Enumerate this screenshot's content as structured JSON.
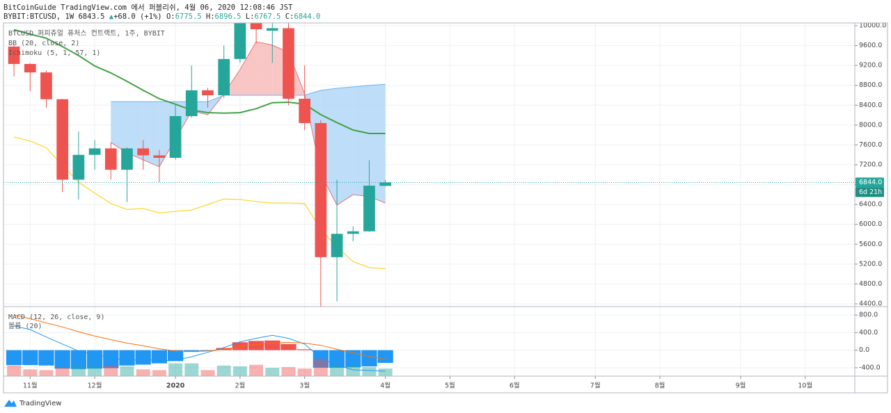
{
  "header": {
    "published": "BitCoinGuide TradingView.com 에서 퍼블리쉬, 4월 06, 2020 12:08:46 JST",
    "symbol": "BYBIT:BTCUSD, 1W",
    "price": "6843.5",
    "arrow": "▲",
    "change": "+68.0 (+1%)",
    "ohlc": [
      {
        "label": "O:",
        "value": "6775.5"
      },
      {
        "label": "H:",
        "value": "6896.5"
      },
      {
        "label": "L:",
        "value": "6767.5"
      },
      {
        "label": "C:",
        "value": "6844.0"
      }
    ]
  },
  "footer": {
    "brand": "TradingView"
  },
  "chart_data": [
    {
      "type": "candlestick",
      "title": "BTCUSD 퍼피츄얼 퓨처스 컨트랙트, 1주, BYBIT",
      "indicators": [
        "BB (20, close, 2)",
        "Ichimoku (5, 1, 57, 1)"
      ],
      "up_color": "#26a69a",
      "down_color": "#ef5350",
      "open": [
        9580,
        9230,
        9060,
        8520,
        6900,
        7400,
        7530,
        7100,
        7530,
        7390,
        7340,
        8180,
        8700,
        8600,
        9330,
        10300,
        9900,
        9950,
        8530,
        8040,
        5340,
        5810,
        5860,
        6775.5
      ],
      "high": [
        9600,
        9250,
        9100,
        8530,
        7870,
        7700,
        7650,
        7550,
        7700,
        7500,
        8420,
        9200,
        8750,
        9600,
        10400,
        10500,
        10200,
        10100,
        9200,
        8100,
        6900,
        5960,
        7290,
        6896.5
      ],
      "low": [
        8980,
        8680,
        8350,
        6650,
        6500,
        7100,
        6900,
        6450,
        7100,
        6850,
        7300,
        8150,
        8350,
        8550,
        9250,
        9650,
        9250,
        8400,
        7900,
        3850,
        4450,
        5660,
        5850,
        6767.5
      ],
      "close": [
        9230,
        9060,
        8520,
        6900,
        7400,
        7530,
        7100,
        7530,
        7390,
        7340,
        8180,
        8700,
        8600,
        9330,
        10300,
        9930,
        9950,
        8530,
        8040,
        5340,
        5810,
        5860,
        6780,
        6844.0
      ],
      "series": [
        {
          "color": "#43a047",
          "values": [
            9920,
            9830,
            9750,
            9580,
            9400,
            9190,
            9050,
            8880,
            8700,
            8530,
            8420,
            8300,
            8250,
            8240,
            8250,
            8330,
            8450,
            8460,
            8420,
            8210,
            8050,
            7900,
            7830,
            7830
          ]
        },
        {
          "color": "#fdd835",
          "values": [
            7760,
            7680,
            7540,
            7190,
            6850,
            6630,
            6420,
            6300,
            6320,
            6230,
            6260,
            6290,
            6400,
            6510,
            6500,
            6460,
            6430,
            6430,
            6420,
            5900,
            5550,
            5250,
            5130,
            5110
          ]
        }
      ],
      "cloud": {
        "span_a": [
          null,
          null,
          null,
          null,
          null,
          null,
          7650,
          7440,
          7300,
          7160,
          7720,
          8280,
          8210,
          8630,
          9120,
          9680,
          9610,
          9470,
          8630,
          7020,
          6390,
          6600,
          6560,
          6430
        ],
        "span_b": [
          null,
          null,
          null,
          null,
          null,
          null,
          8470,
          8470,
          8470,
          8470,
          8470,
          8470,
          8470,
          8600,
          8600,
          8600,
          8600,
          8600,
          8600,
          8700,
          8740,
          8770,
          8800,
          8820
        ],
        "up_color": "#f8bcbc",
        "down_color": "#b3d7f7"
      },
      "last_price": {
        "value": 6844.0,
        "label": "6844.0"
      },
      "countdown": "6d 21h",
      "ylim": [
        4344,
        10056
      ],
      "yticks": [
        {
          "value": 4400,
          "label": "4400.0"
        },
        {
          "value": 4800,
          "label": "4800.0"
        },
        {
          "value": 5200,
          "label": "5200.0"
        },
        {
          "value": 5600,
          "label": "5600.0"
        },
        {
          "value": 6000,
          "label": "6000.0"
        },
        {
          "value": 6400,
          "label": "6400.0"
        },
        {
          "value": 6800,
          "label": "6800.0"
        },
        {
          "value": 7200,
          "label": "7200.0"
        },
        {
          "value": 7600,
          "label": "7600.0"
        },
        {
          "value": 8000,
          "label": "8000.0"
        },
        {
          "value": 8400,
          "label": "8400.0"
        },
        {
          "value": 8800,
          "label": "8800.0"
        },
        {
          "value": 9200,
          "label": "9200.0"
        },
        {
          "value": 9600,
          "label": "9600.0"
        },
        {
          "value": 10000,
          "label": "10000.0"
        }
      ],
      "xlim": [
        -0.65,
        52.07
      ],
      "xticks": [
        {
          "value": 1,
          "label": "11월"
        },
        {
          "value": 5,
          "label": "12월"
        },
        {
          "value": 10,
          "label": "2020"
        },
        {
          "value": 14,
          "label": "2월"
        },
        {
          "value": 18,
          "label": "3월"
        },
        {
          "value": 23,
          "label": "4월"
        },
        {
          "value": 27,
          "label": "5월"
        },
        {
          "value": 31,
          "label": "6월"
        },
        {
          "value": 36,
          "label": "7월"
        },
        {
          "value": 40,
          "label": "8월"
        },
        {
          "value": 45,
          "label": "9월"
        },
        {
          "value": 49,
          "label": "10월"
        }
      ],
      "grid": true
    },
    {
      "type": "macd",
      "title": "MACD (12, 26, close, 9)",
      "subtitle": "볼륨 (20)",
      "histogram": [
        -340,
        -340,
        -350,
        -420,
        -430,
        -420,
        -410,
        -350,
        -330,
        -300,
        -250,
        -40,
        -20,
        50,
        180,
        210,
        220,
        140,
        20,
        -400,
        -400,
        -390,
        -370,
        -290
      ],
      "histogram_colors": {
        "positive": "#ef5350",
        "negative": "#2196f3"
      },
      "macd": {
        "color": "#2196f3",
        "values": [
          550,
          470,
          300,
          140,
          -20,
          -100,
          -170,
          -240,
          -210,
          -240,
          -230,
          -150,
          -50,
          60,
          190,
          270,
          340,
          270,
          140,
          -180,
          -340,
          -450,
          -460,
          -480
        ]
      },
      "signal": {
        "color": "#ff6d00",
        "values": [
          800,
          720,
          620,
          530,
          420,
          320,
          240,
          160,
          100,
          30,
          -20,
          -30,
          -20,
          20,
          80,
          130,
          160,
          180,
          160,
          110,
          20,
          -60,
          -140,
          -210
        ]
      },
      "volume": [
        14,
        9,
        8,
        12,
        13,
        13,
        14,
        13,
        9,
        8,
        17,
        17,
        8,
        14,
        13,
        15,
        11,
        12,
        10,
        23,
        14,
        14,
        12,
        10
      ],
      "ylim": [
        -592,
        992
      ],
      "yticks": [
        {
          "value": -400,
          "label": "-400.0"
        },
        {
          "value": 0,
          "label": "0.0"
        },
        {
          "value": 400,
          "label": "400.0"
        },
        {
          "value": 800,
          "label": "800.0"
        }
      ]
    }
  ]
}
